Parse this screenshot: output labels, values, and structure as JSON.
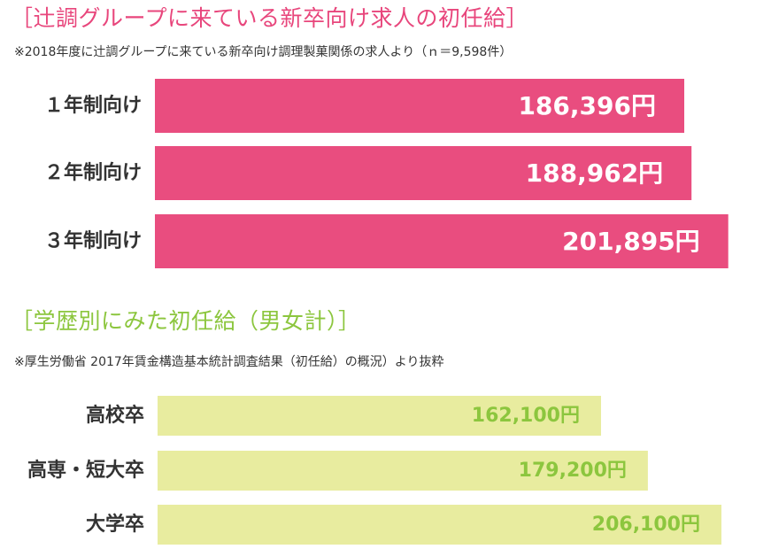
{
  "chart_data": [
    {
      "type": "bar",
      "orientation": "horizontal",
      "title": "［辻調グループに来ている新卒向け求人の初任給］",
      "subtitle": "※2018年度に辻調グループに来ている新卒向け調理製菓関係の求人より（ｎ＝9,598件）",
      "categories": [
        "１年制向け",
        "２年制向け",
        "３年制向け"
      ],
      "values": [
        186396,
        188962,
        201895
      ],
      "value_labels": [
        "186,396円",
        "188,962円",
        "201,895円"
      ],
      "bar_color": "#e94d7f",
      "label_color": "#ffffff",
      "title_color": "#e8467c",
      "grid": false
    },
    {
      "type": "bar",
      "orientation": "horizontal",
      "title": "［学歴別にみた初任給（男女計）］",
      "subtitle": "※厚生労働省 2017年賃金構造基本統計調査結果（初任給）の概況）より抜粋",
      "categories": [
        "高校卒",
        "高専・短大卒",
        "大学卒"
      ],
      "values": [
        162100,
        179200,
        206100
      ],
      "value_labels": [
        "162,100円",
        "179,200円",
        "206,100円"
      ],
      "bar_color": "#e8ec9f",
      "label_color": "#8cc63e",
      "title_color": "#8cc63e",
      "grid": false
    }
  ]
}
